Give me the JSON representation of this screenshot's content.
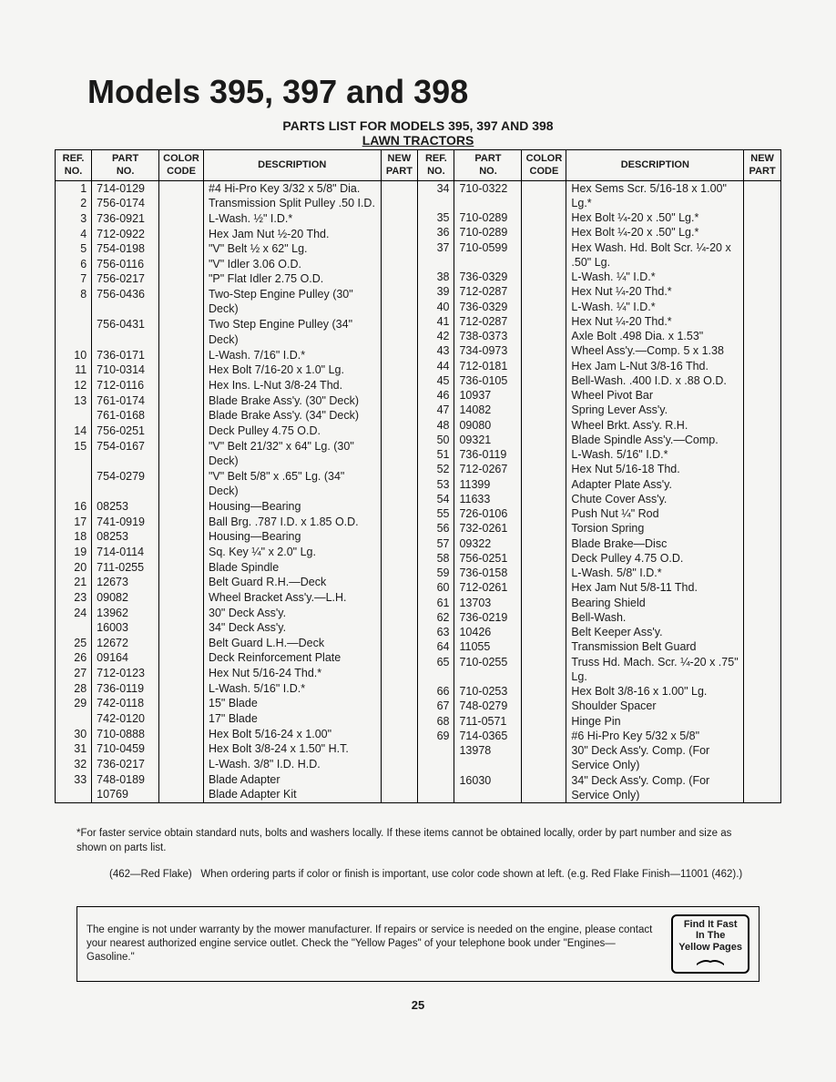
{
  "title": "Models 395, 397 and 398",
  "subtitle": "PARTS LIST FOR MODELS 395, 397 AND 398",
  "subtitle2": "LAWN TRACTORS",
  "headers": {
    "ref": "REF.\nNO.",
    "part": "PART\nNO.",
    "color": "COLOR\nCODE",
    "desc": "DESCRIPTION",
    "newpart": "NEW\nPART"
  },
  "left": [
    {
      "ref": "1",
      "part": "714-0129",
      "desc": "#4 Hi-Pro Key 3/32 x 5/8\" Dia."
    },
    {
      "ref": "2",
      "part": "756-0174",
      "desc": "Transmission Split Pulley .50 I.D."
    },
    {
      "ref": "3",
      "part": "736-0921",
      "desc": "L-Wash. ½\" I.D.*"
    },
    {
      "ref": "4",
      "part": "712-0922",
      "desc": "Hex Jam Nut ½-20 Thd."
    },
    {
      "ref": "5",
      "part": "754-0198",
      "desc": "\"V\" Belt ½ x 62\" Lg."
    },
    {
      "ref": "6",
      "part": "756-0116",
      "desc": "\"V\" Idler 3.06 O.D."
    },
    {
      "ref": "7",
      "part": "756-0217",
      "desc": "\"P\" Flat Idler 2.75 O.D."
    },
    {
      "ref": "8",
      "part": "756-0436",
      "desc": "Two-Step Engine Pulley (30\" Deck)"
    },
    {
      "ref": "",
      "part": "756-0431",
      "desc": "Two Step Engine Pulley (34\" Deck)"
    },
    {
      "ref": "10",
      "part": "736-0171",
      "desc": "L-Wash. 7/16\" I.D.*"
    },
    {
      "ref": "11",
      "part": "710-0314",
      "desc": "Hex Bolt 7/16-20 x 1.0\" Lg."
    },
    {
      "ref": "12",
      "part": "712-0116",
      "desc": "Hex Ins. L-Nut 3/8-24 Thd."
    },
    {
      "ref": "13",
      "part": "761-0174",
      "desc": "Blade Brake Ass'y. (30\" Deck)"
    },
    {
      "ref": "",
      "part": "761-0168",
      "desc": "Blade Brake Ass'y. (34\" Deck)"
    },
    {
      "ref": "14",
      "part": "756-0251",
      "desc": "Deck Pulley 4.75 O.D."
    },
    {
      "ref": "15",
      "part": "754-0167",
      "desc": "\"V\" Belt 21/32\" x 64\" Lg. (30\" Deck)"
    },
    {
      "ref": "",
      "part": "754-0279",
      "desc": "\"V\" Belt 5/8\" x .65\" Lg. (34\" Deck)"
    },
    {
      "ref": "16",
      "part": "08253",
      "desc": "Housing—Bearing"
    },
    {
      "ref": "17",
      "part": "741-0919",
      "desc": "Ball Brg. .787 I.D. x 1.85 O.D."
    },
    {
      "ref": "18",
      "part": "08253",
      "desc": "Housing—Bearing"
    },
    {
      "ref": "19",
      "part": "714-0114",
      "desc": "Sq. Key ¼\" x 2.0\" Lg."
    },
    {
      "ref": "20",
      "part": "711-0255",
      "desc": "Blade Spindle"
    },
    {
      "ref": "21",
      "part": "12673",
      "desc": "Belt Guard R.H.—Deck"
    },
    {
      "ref": "23",
      "part": "09082",
      "desc": "Wheel Bracket Ass'y.—L.H."
    },
    {
      "ref": "24",
      "part": "13962",
      "desc": "30\" Deck Ass'y."
    },
    {
      "ref": "",
      "part": "16003",
      "desc": "34\" Deck Ass'y."
    },
    {
      "ref": "25",
      "part": "12672",
      "desc": "Belt Guard L.H.—Deck"
    },
    {
      "ref": "26",
      "part": "09164",
      "desc": "Deck Reinforcement Plate"
    },
    {
      "ref": "27",
      "part": "712-0123",
      "desc": "Hex Nut 5/16-24 Thd.*"
    },
    {
      "ref": "28",
      "part": "736-0119",
      "desc": "L-Wash. 5/16\" I.D.*"
    },
    {
      "ref": "29",
      "part": "742-0118",
      "desc": "15\" Blade"
    },
    {
      "ref": "",
      "part": "742-0120",
      "desc": "17\" Blade"
    },
    {
      "ref": "30",
      "part": "710-0888",
      "desc": "Hex Bolt 5/16-24 x 1.00\""
    },
    {
      "ref": "31",
      "part": "710-0459",
      "desc": "Hex Bolt 3/8-24 x 1.50\" H.T."
    },
    {
      "ref": "32",
      "part": "736-0217",
      "desc": "L-Wash. 3/8\" I.D. H.D."
    },
    {
      "ref": "33",
      "part": "748-0189",
      "desc": "Blade Adapter"
    },
    {
      "ref": "",
      "part": "10769",
      "desc": "Blade Adapter Kit"
    }
  ],
  "right": [
    {
      "ref": "34",
      "part": "710-0322",
      "desc": "Hex Sems Scr. 5/16-18 x 1.00\" Lg.*"
    },
    {
      "ref": "35",
      "part": "710-0289",
      "desc": "Hex Bolt ¼-20 x .50\" Lg.*"
    },
    {
      "ref": "36",
      "part": "710-0289",
      "desc": "Hex Bolt ¼-20 x .50\" Lg.*"
    },
    {
      "ref": "37",
      "part": "710-0599",
      "desc": "Hex Wash. Hd. Bolt Scr. ¼-20 x .50\" Lg."
    },
    {
      "ref": "38",
      "part": "736-0329",
      "desc": "L-Wash. ¼\" I.D.*"
    },
    {
      "ref": "39",
      "part": "712-0287",
      "desc": "Hex Nut ¼-20 Thd.*"
    },
    {
      "ref": "40",
      "part": "736-0329",
      "desc": "L-Wash. ¼\" I.D.*"
    },
    {
      "ref": "41",
      "part": "712-0287",
      "desc": "Hex Nut ¼-20 Thd.*"
    },
    {
      "ref": "42",
      "part": "738-0373",
      "desc": "Axle Bolt .498 Dia. x 1.53\""
    },
    {
      "ref": "43",
      "part": "734-0973",
      "desc": "Wheel Ass'y.—Comp. 5 x 1.38"
    },
    {
      "ref": "44",
      "part": "712-0181",
      "desc": "Hex Jam L-Nut 3/8-16 Thd."
    },
    {
      "ref": "45",
      "part": "736-0105",
      "desc": "Bell-Wash. .400 I.D. x .88 O.D."
    },
    {
      "ref": "46",
      "part": "10937",
      "desc": "Wheel Pivot Bar"
    },
    {
      "ref": "47",
      "part": "14082",
      "desc": "Spring Lever Ass'y."
    },
    {
      "ref": "48",
      "part": "09080",
      "desc": "Wheel Brkt. Ass'y. R.H."
    },
    {
      "ref": "50",
      "part": "09321",
      "desc": "Blade Spindle Ass'y.—Comp."
    },
    {
      "ref": "51",
      "part": "736-0119",
      "desc": "L-Wash. 5/16\" I.D.*"
    },
    {
      "ref": "52",
      "part": "712-0267",
      "desc": "Hex Nut 5/16-18 Thd."
    },
    {
      "ref": "53",
      "part": "11399",
      "desc": "Adapter Plate Ass'y."
    },
    {
      "ref": "54",
      "part": "11633",
      "desc": "Chute Cover Ass'y."
    },
    {
      "ref": "55",
      "part": "726-0106",
      "desc": "Push Nut ¼\" Rod"
    },
    {
      "ref": "56",
      "part": "732-0261",
      "desc": "Torsion Spring"
    },
    {
      "ref": "57",
      "part": "09322",
      "desc": "Blade Brake—Disc"
    },
    {
      "ref": "58",
      "part": "756-0251",
      "desc": "Deck Pulley 4.75 O.D."
    },
    {
      "ref": "59",
      "part": "736-0158",
      "desc": "L-Wash. 5/8\" I.D.*"
    },
    {
      "ref": "60",
      "part": "712-0261",
      "desc": "Hex Jam Nut 5/8-11 Thd."
    },
    {
      "ref": "61",
      "part": "13703",
      "desc": "Bearing Shield"
    },
    {
      "ref": "62",
      "part": "736-0219",
      "desc": "Bell-Wash."
    },
    {
      "ref": "63",
      "part": "10426",
      "desc": "Belt Keeper Ass'y."
    },
    {
      "ref": "64",
      "part": "11055",
      "desc": "Transmission Belt Guard"
    },
    {
      "ref": "65",
      "part": "710-0255",
      "desc": "Truss Hd. Mach. Scr. ¼-20 x .75\" Lg."
    },
    {
      "ref": "66",
      "part": "710-0253",
      "desc": "Hex Bolt 3/8-16 x 1.00\" Lg."
    },
    {
      "ref": "67",
      "part": "748-0279",
      "desc": "Shoulder Spacer"
    },
    {
      "ref": "68",
      "part": "711-0571",
      "desc": "Hinge Pin"
    },
    {
      "ref": "69",
      "part": "714-0365",
      "desc": "#6 Hi-Pro Key 5/32 x 5/8\""
    },
    {
      "ref": "",
      "part": "13978",
      "desc": "30\" Deck Ass'y. Comp. (For Service Only)"
    },
    {
      "ref": "",
      "part": "16030",
      "desc": "34\" Deck Ass'y. Comp. (For Service Only)"
    }
  ],
  "footnote": "*For faster service obtain standard nuts, bolts and washers locally. If these items cannot be obtained locally, order by part number and size as shown on parts list.",
  "footnote2_label": "(462—Red Flake)",
  "footnote2_text": "When ordering parts if color or finish is important, use color code shown at left. (e.g. Red Flake Finish—11001 (462).)",
  "warranty": "The engine is not under warranty by the mower manufacturer. If repairs or service is needed on the engine, please contact your nearest authorized engine service outlet. Check the \"Yellow Pages\" of your telephone book under \"Engines—Gasoline.\"",
  "find": {
    "l1": "Find It Fast",
    "l2": "In The",
    "l3": "Yellow Pages"
  },
  "page": "25"
}
